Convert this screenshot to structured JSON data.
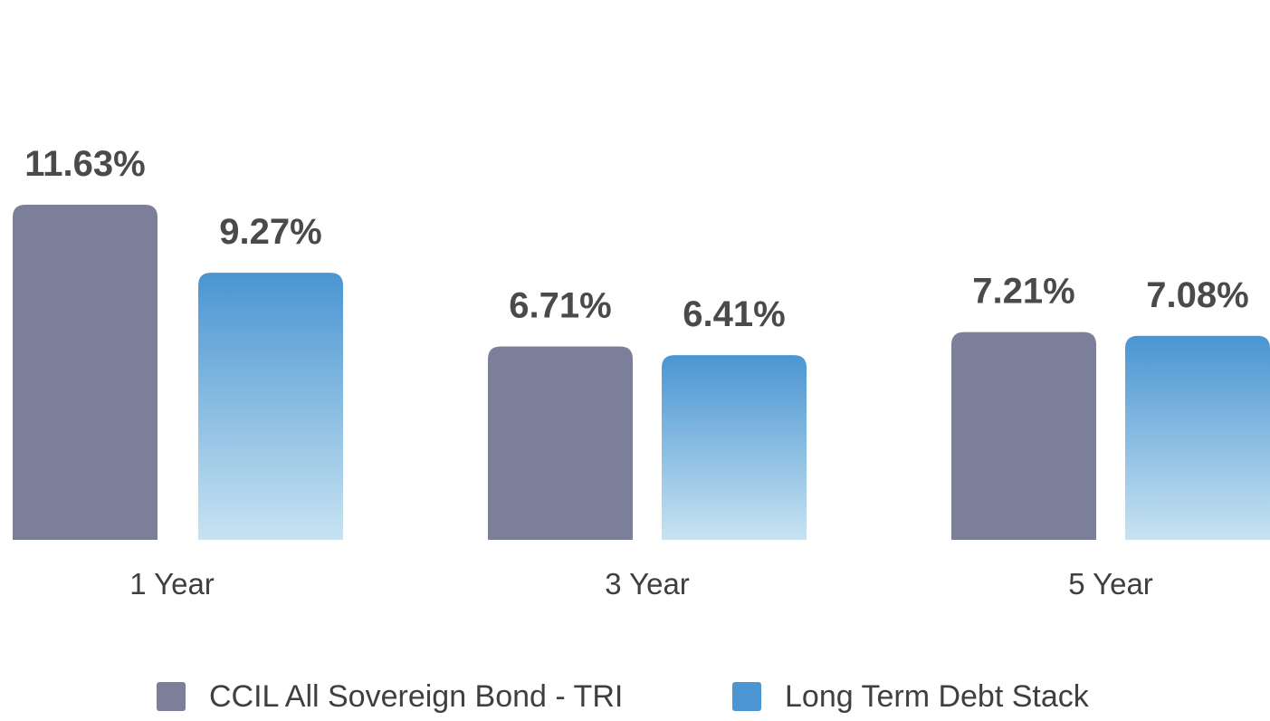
{
  "chart_data": {
    "type": "bar",
    "categories": [
      "1 Year",
      "3 Year",
      "5 Year"
    ],
    "series": [
      {
        "name": "CCIL All Sovereign Bond - TRI",
        "values": [
          11.63,
          6.71,
          7.21
        ],
        "labels": [
          "11.63%",
          "6.71%",
          "7.21%"
        ],
        "color": "#7b7f99"
      },
      {
        "name": "Long Term Debt Stack",
        "values": [
          9.27,
          6.41,
          7.08
        ],
        "labels": [
          "9.27%",
          "6.41%",
          "7.08%"
        ],
        "color": "#4a95d2",
        "gradient_bottom": "#c8e3f2"
      }
    ],
    "ylim": [
      0,
      11.63
    ],
    "grid": false,
    "legend_position": "bottom"
  }
}
